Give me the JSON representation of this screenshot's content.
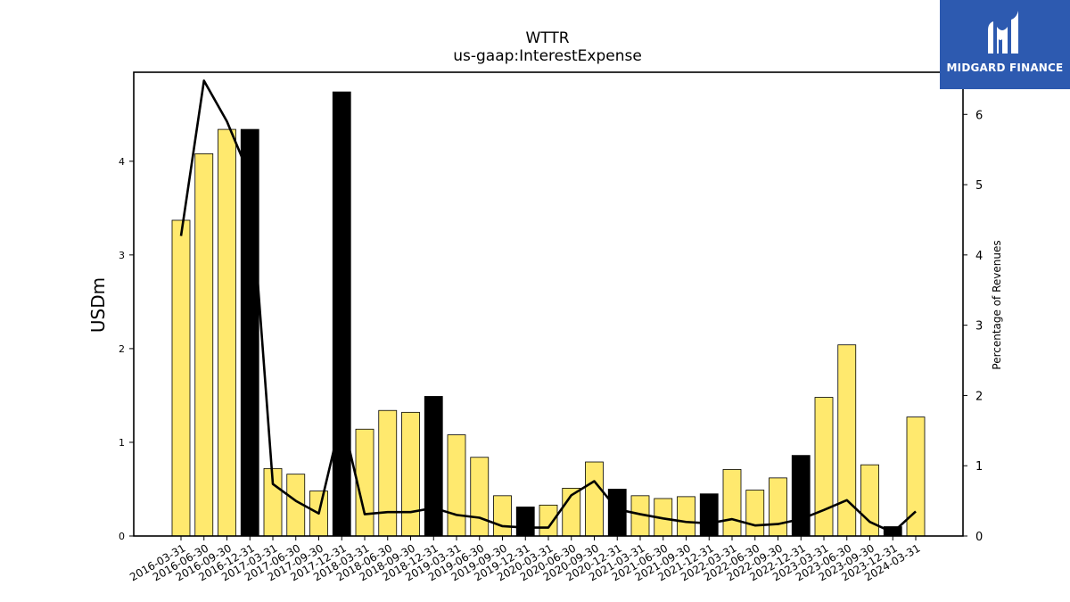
{
  "chart_data": {
    "type": "bar",
    "title": "WTTR",
    "subtitle": "us-gaap:InterestExpense",
    "ylabel": "USDm",
    "y2label": "Percentage of Revenues",
    "ylim": [
      0,
      4.95
    ],
    "y2lim": [
      0,
      6.6
    ],
    "yticks": [
      0,
      1,
      2,
      3,
      4
    ],
    "y2ticks": [
      0,
      1,
      2,
      3,
      4,
      5,
      6
    ],
    "categories": [
      "2016-03-31",
      "2016-06-30",
      "2016-09-30",
      "2016-12-31",
      "2017-03-31",
      "2017-06-30",
      "2017-09-30",
      "2017-12-31",
      "2018-03-31",
      "2018-06-30",
      "2018-09-30",
      "2018-12-31",
      "2019-03-31",
      "2019-06-30",
      "2019-09-30",
      "2019-12-31",
      "2020-03-31",
      "2020-06-30",
      "2020-09-30",
      "2020-12-31",
      "2021-03-31",
      "2021-06-30",
      "2021-09-30",
      "2021-12-31",
      "2022-03-31",
      "2022-06-30",
      "2022-09-30",
      "2022-12-31",
      "2023-03-31",
      "2023-06-30",
      "2023-09-30",
      "2023-12-31",
      "2024-03-31"
    ],
    "series": [
      {
        "type": "bar",
        "values": [
          3.37,
          4.08,
          4.34,
          4.34,
          0.72,
          0.66,
          0.48,
          4.74,
          1.14,
          1.34,
          1.32,
          1.49,
          1.08,
          0.84,
          0.43,
          0.31,
          0.33,
          0.51,
          0.79,
          0.5,
          0.43,
          0.4,
          0.42,
          0.45,
          0.71,
          0.49,
          0.62,
          0.86,
          1.48,
          2.04,
          0.76,
          0.1,
          1.27
        ],
        "q4_color": "#000000",
        "color": "#ffe96e"
      },
      {
        "type": "line",
        "axis": "right",
        "color": "#000000",
        "values": [
          4.27,
          6.48,
          5.9,
          5.12,
          0.74,
          0.5,
          0.32,
          1.7,
          0.31,
          0.34,
          0.34,
          0.4,
          0.3,
          0.26,
          0.14,
          0.12,
          0.12,
          0.58,
          0.78,
          0.38,
          0.31,
          0.25,
          0.2,
          0.18,
          0.24,
          0.15,
          0.17,
          0.24,
          0.37,
          0.51,
          0.2,
          0.05,
          0.35
        ]
      }
    ]
  },
  "logo": {
    "text": "MIDGARD FINANCE",
    "icon": "midgard-finance-logo-icon",
    "background": "#2d5ab0"
  }
}
